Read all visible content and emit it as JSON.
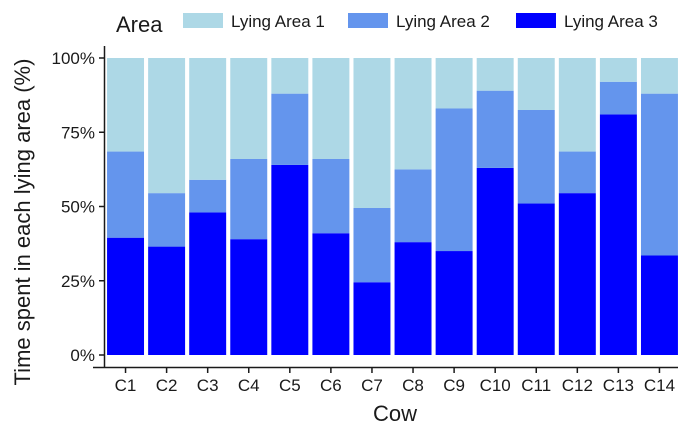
{
  "chart_data": {
    "type": "bar",
    "stacked": true,
    "categories": [
      "C1",
      "C2",
      "C3",
      "C4",
      "C5",
      "C6",
      "C7",
      "C8",
      "C9",
      "C10",
      "C11",
      "C12",
      "C13",
      "C14"
    ],
    "series": [
      {
        "name": "Lying Area 1",
        "color": "#add8e6",
        "values": [
          31.5,
          45.5,
          41.0,
          34.0,
          12.0,
          34.0,
          50.5,
          37.5,
          17.0,
          11.0,
          17.5,
          31.5,
          8.0,
          12.0
        ]
      },
      {
        "name": "Lying Area 2",
        "color": "#6495ed",
        "values": [
          29.0,
          18.0,
          11.0,
          27.0,
          24.0,
          25.0,
          25.0,
          24.5,
          48.0,
          26.0,
          31.5,
          14.0,
          11.0,
          54.5
        ]
      },
      {
        "name": "Lying Area 3",
        "color": "#0000ff",
        "values": [
          39.5,
          36.5,
          48.0,
          39.0,
          64.0,
          41.0,
          24.5,
          38.0,
          35.0,
          63.0,
          51.0,
          54.5,
          81.0,
          33.5
        ]
      }
    ],
    "legend": {
      "title": "Area",
      "position": "top"
    },
    "xlabel": "Cow",
    "ylabel": "Time spent in each lying area (%)",
    "ylim": [
      0,
      100
    ],
    "yticks": [
      "0%",
      "25%",
      "50%",
      "75%",
      "100%"
    ],
    "yticks_values": [
      0,
      25,
      50,
      75,
      100
    ],
    "grid": false
  }
}
